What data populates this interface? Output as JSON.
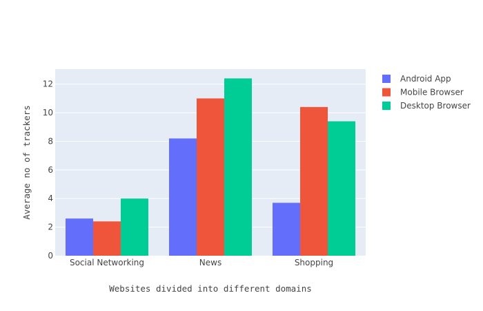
{
  "chart_data": {
    "type": "bar",
    "title": "",
    "xlabel": "Websites divided into different domains",
    "ylabel": "Average no of trackers",
    "categories": [
      "Social Networking",
      "News",
      "Shopping"
    ],
    "series": [
      {
        "name": "Android App",
        "values": [
          2.6,
          8.2,
          3.7
        ],
        "color": "#636efa"
      },
      {
        "name": "Mobile Browser",
        "values": [
          2.4,
          11.0,
          10.4
        ],
        "color": "#ef553b"
      },
      {
        "name": "Desktop Browser",
        "values": [
          4.0,
          12.4,
          9.4
        ],
        "color": "#00cc96"
      }
    ],
    "ylim": [
      0,
      13.05
    ],
    "yticks": [
      0,
      2,
      4,
      6,
      8,
      10,
      12
    ],
    "ytick_labels": [
      "0",
      "2",
      "4",
      "6",
      "8",
      "10",
      "12"
    ],
    "grid": true,
    "legend_position": "top-right",
    "plot_background": "#e5ecf6"
  }
}
